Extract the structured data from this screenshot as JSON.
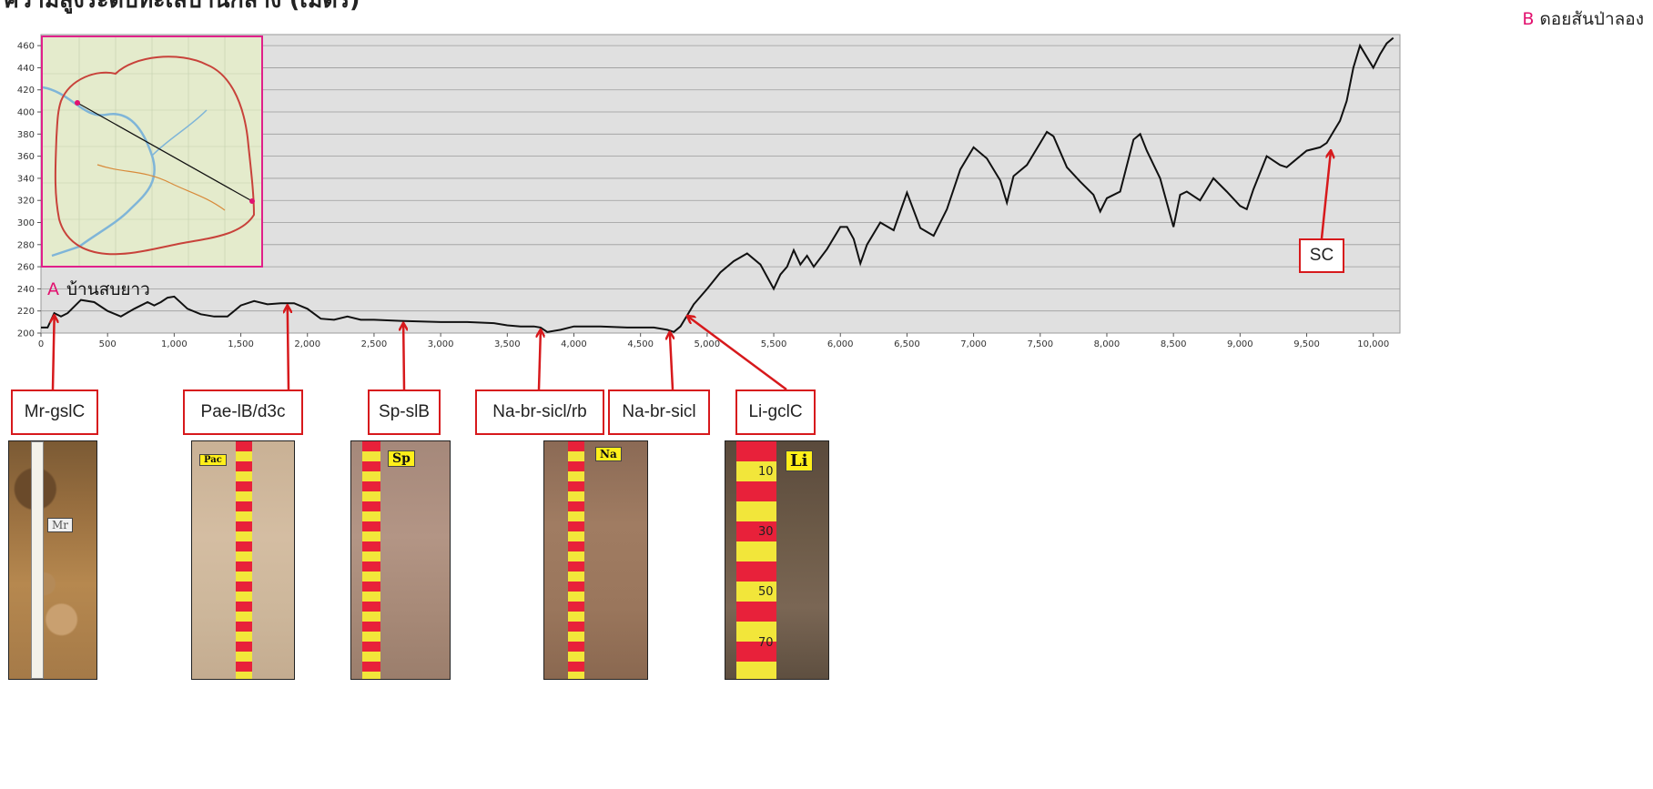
{
  "title": "ความสูงระดับทะเลปานกลาง (เมตร)",
  "start_point": {
    "letter": "A",
    "name": "บ้านสบยาว"
  },
  "end_point": {
    "letter": "B",
    "name": "ดอยสันป่าลอง"
  },
  "colors": {
    "letters": "#e2126f",
    "callout": "#d7191c",
    "line": "#111111",
    "plot_bg": "#e0e0e0",
    "inset_border": "#e0208a"
  },
  "chart_data": {
    "type": "line",
    "title": "",
    "xlabel": "",
    "ylabel": "",
    "xlim": [
      0,
      10200
    ],
    "ylim": [
      200,
      470
    ],
    "x_ticks": [
      0,
      500,
      1000,
      1500,
      2000,
      2500,
      3000,
      3500,
      4000,
      4500,
      5000,
      5500,
      6000,
      6500,
      7000,
      7500,
      8000,
      8500,
      9000,
      9500,
      10000
    ],
    "x_tick_labels": [
      "0",
      "500",
      "1,000",
      "1,500",
      "2,000",
      "2,500",
      "3,000",
      "3,500",
      "4,000",
      "4,500",
      "5,000",
      "5,500",
      "6,000",
      "6,500",
      "7,000",
      "7,500",
      "8,000",
      "8,500",
      "9,000",
      "9,500",
      "10,000"
    ],
    "y_ticks": [
      200,
      220,
      240,
      260,
      280,
      300,
      320,
      340,
      360,
      380,
      400,
      420,
      440,
      460
    ],
    "grid": true,
    "series": [
      {
        "x": [
          0,
          50,
          100,
          150,
          200,
          300,
          400,
          500,
          600,
          700,
          800,
          850,
          900,
          950,
          1000,
          1100,
          1200,
          1300,
          1400,
          1500,
          1600,
          1700,
          1800,
          1900,
          2000,
          2100,
          2200,
          2300,
          2400,
          2500,
          2700,
          3000,
          3200,
          3400,
          3500,
          3600,
          3700,
          3750,
          3800,
          3900,
          4000,
          4200,
          4400,
          4600,
          4650,
          4700,
          4750,
          4800,
          4850,
          4900,
          5000,
          5100,
          5200,
          5300,
          5400,
          5500,
          5550,
          5600,
          5650,
          5700,
          5750,
          5800,
          5900,
          6000,
          6050,
          6100,
          6150,
          6200,
          6300,
          6400,
          6500,
          6600,
          6700,
          6800,
          6900,
          7000,
          7100,
          7200,
          7250,
          7300,
          7400,
          7500,
          7550,
          7600,
          7700,
          7800,
          7900,
          7950,
          8000,
          8100,
          8200,
          8250,
          8300,
          8400,
          8500,
          8550,
          8600,
          8700,
          8800,
          8900,
          9000,
          9050,
          9100,
          9150,
          9200,
          9300,
          9350,
          9400,
          9500,
          9600,
          9650,
          9700,
          9750,
          9800,
          9850,
          9900,
          9950,
          10000,
          10050,
          10100,
          10150
        ],
        "y": [
          205,
          205,
          218,
          215,
          218,
          230,
          228,
          220,
          215,
          222,
          228,
          225,
          228,
          232,
          233,
          222,
          217,
          215,
          215,
          225,
          229,
          226,
          227,
          227,
          222,
          213,
          212,
          215,
          212,
          212,
          211,
          210,
          210,
          209,
          207,
          206,
          206,
          205,
          201,
          203,
          206,
          206,
          205,
          205,
          204,
          203,
          201,
          206,
          216,
          226,
          240,
          255,
          265,
          272,
          262,
          240,
          253,
          260,
          275,
          262,
          270,
          260,
          276,
          296,
          296,
          285,
          263,
          280,
          300,
          293,
          327,
          295,
          288,
          312,
          348,
          368,
          358,
          338,
          318,
          342,
          352,
          372,
          382,
          378,
          350,
          337,
          325,
          310,
          322,
          328,
          375,
          380,
          365,
          340,
          296,
          325,
          328,
          320,
          340,
          328,
          315,
          312,
          330,
          345,
          360,
          352,
          350,
          355,
          365,
          368,
          372,
          382,
          392,
          410,
          440,
          460,
          450,
          440,
          452,
          462,
          467
        ]
      }
    ]
  },
  "callouts": [
    {
      "label": "Mr-gslC",
      "x": 100,
      "y": 218
    },
    {
      "label": "Pae-lB/d3c",
      "x": 1850,
      "y": 227
    },
    {
      "label": "Sp-slB",
      "x": 2720,
      "y": 211
    },
    {
      "label": "Na-br-sicl/rb",
      "x": 3750,
      "y": 205
    },
    {
      "label": "Na-br-sicl",
      "x": 4720,
      "y": 203
    },
    {
      "label": "Li-gclC",
      "x": 4860,
      "y": 218
    },
    {
      "label": "SC",
      "x": 9680,
      "y": 367
    }
  ],
  "photos": [
    {
      "tag": "Mr"
    },
    {
      "tag": "Pac"
    },
    {
      "tag": "Sp"
    },
    {
      "tag": "Na"
    },
    {
      "tag": "Li",
      "tape_numbers": [
        "10",
        "30",
        "50",
        "70"
      ]
    }
  ],
  "inset_map": {
    "name": "inset-map"
  }
}
